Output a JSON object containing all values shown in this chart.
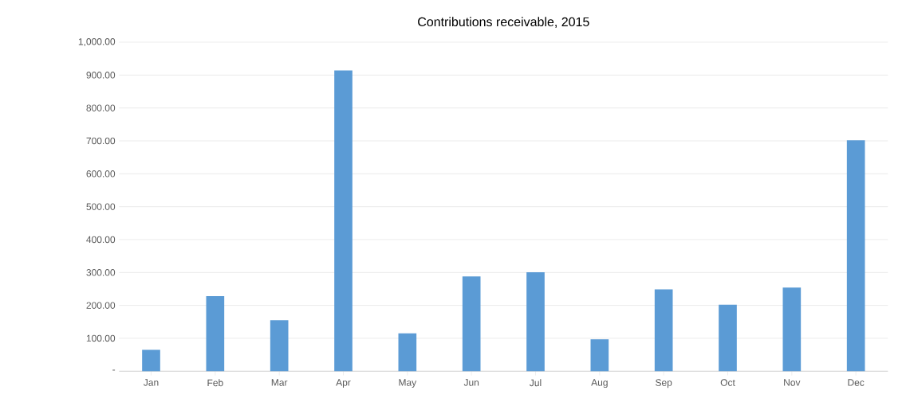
{
  "chart_data": {
    "type": "bar",
    "title": "Contributions receivable, 2015",
    "categories": [
      "Jan",
      "Feb",
      "Mar",
      "Apr",
      "May",
      "Jun",
      "Jul",
      "Aug",
      "Sep",
      "Oct",
      "Nov",
      "Dec"
    ],
    "values": [
      65,
      228,
      155,
      914,
      115,
      288,
      301,
      97,
      249,
      202,
      254,
      702
    ],
    "color": "#5b9bd5",
    "ylim": [
      0,
      1000
    ],
    "yticks": [
      {
        "value": 0,
        "label": "-"
      },
      {
        "value": 100,
        "label": "100.00"
      },
      {
        "value": 200,
        "label": "200.00"
      },
      {
        "value": 300,
        "label": "300.00"
      },
      {
        "value": 400,
        "label": "400.00"
      },
      {
        "value": 500,
        "label": "500.00"
      },
      {
        "value": 600,
        "label": "600.00"
      },
      {
        "value": 700,
        "label": "700.00"
      },
      {
        "value": 800,
        "label": "800.00"
      },
      {
        "value": 900,
        "label": "900.00"
      },
      {
        "value": 1000,
        "label": "1,000.00"
      }
    ],
    "grid": "y"
  }
}
